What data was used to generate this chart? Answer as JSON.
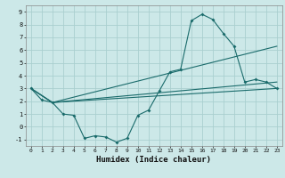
{
  "xlabel": "Humidex (Indice chaleur)",
  "bg_color": "#cce8e8",
  "grid_color": "#aacfcf",
  "line_color": "#1a6b6b",
  "xlim": [
    -0.5,
    23.5
  ],
  "ylim": [
    -1.5,
    9.5
  ],
  "xticks": [
    0,
    1,
    2,
    3,
    4,
    5,
    6,
    7,
    8,
    9,
    10,
    11,
    12,
    13,
    14,
    15,
    16,
    17,
    18,
    19,
    20,
    21,
    22,
    23
  ],
  "yticks": [
    -1,
    0,
    1,
    2,
    3,
    4,
    5,
    6,
    7,
    8,
    9
  ],
  "line1_x": [
    0,
    1,
    2,
    3,
    4,
    5,
    6,
    7,
    8,
    9,
    10,
    11,
    12,
    13,
    14,
    15,
    16,
    17,
    18,
    19,
    20,
    21,
    22,
    23
  ],
  "line1_y": [
    3.0,
    2.1,
    1.9,
    1.0,
    0.9,
    -0.9,
    -0.7,
    -0.8,
    -1.2,
    -0.9,
    0.9,
    1.3,
    2.8,
    4.3,
    4.5,
    8.3,
    8.8,
    8.4,
    7.3,
    6.3,
    3.5,
    3.7,
    3.5,
    3.0
  ],
  "line2_x": [
    0,
    2,
    23
  ],
  "line2_y": [
    3.0,
    1.9,
    6.3
  ],
  "line3_x": [
    0,
    2,
    23
  ],
  "line3_y": [
    3.0,
    1.9,
    3.5
  ],
  "line4_x": [
    0,
    2,
    23
  ],
  "line4_y": [
    3.0,
    1.9,
    3.0
  ]
}
